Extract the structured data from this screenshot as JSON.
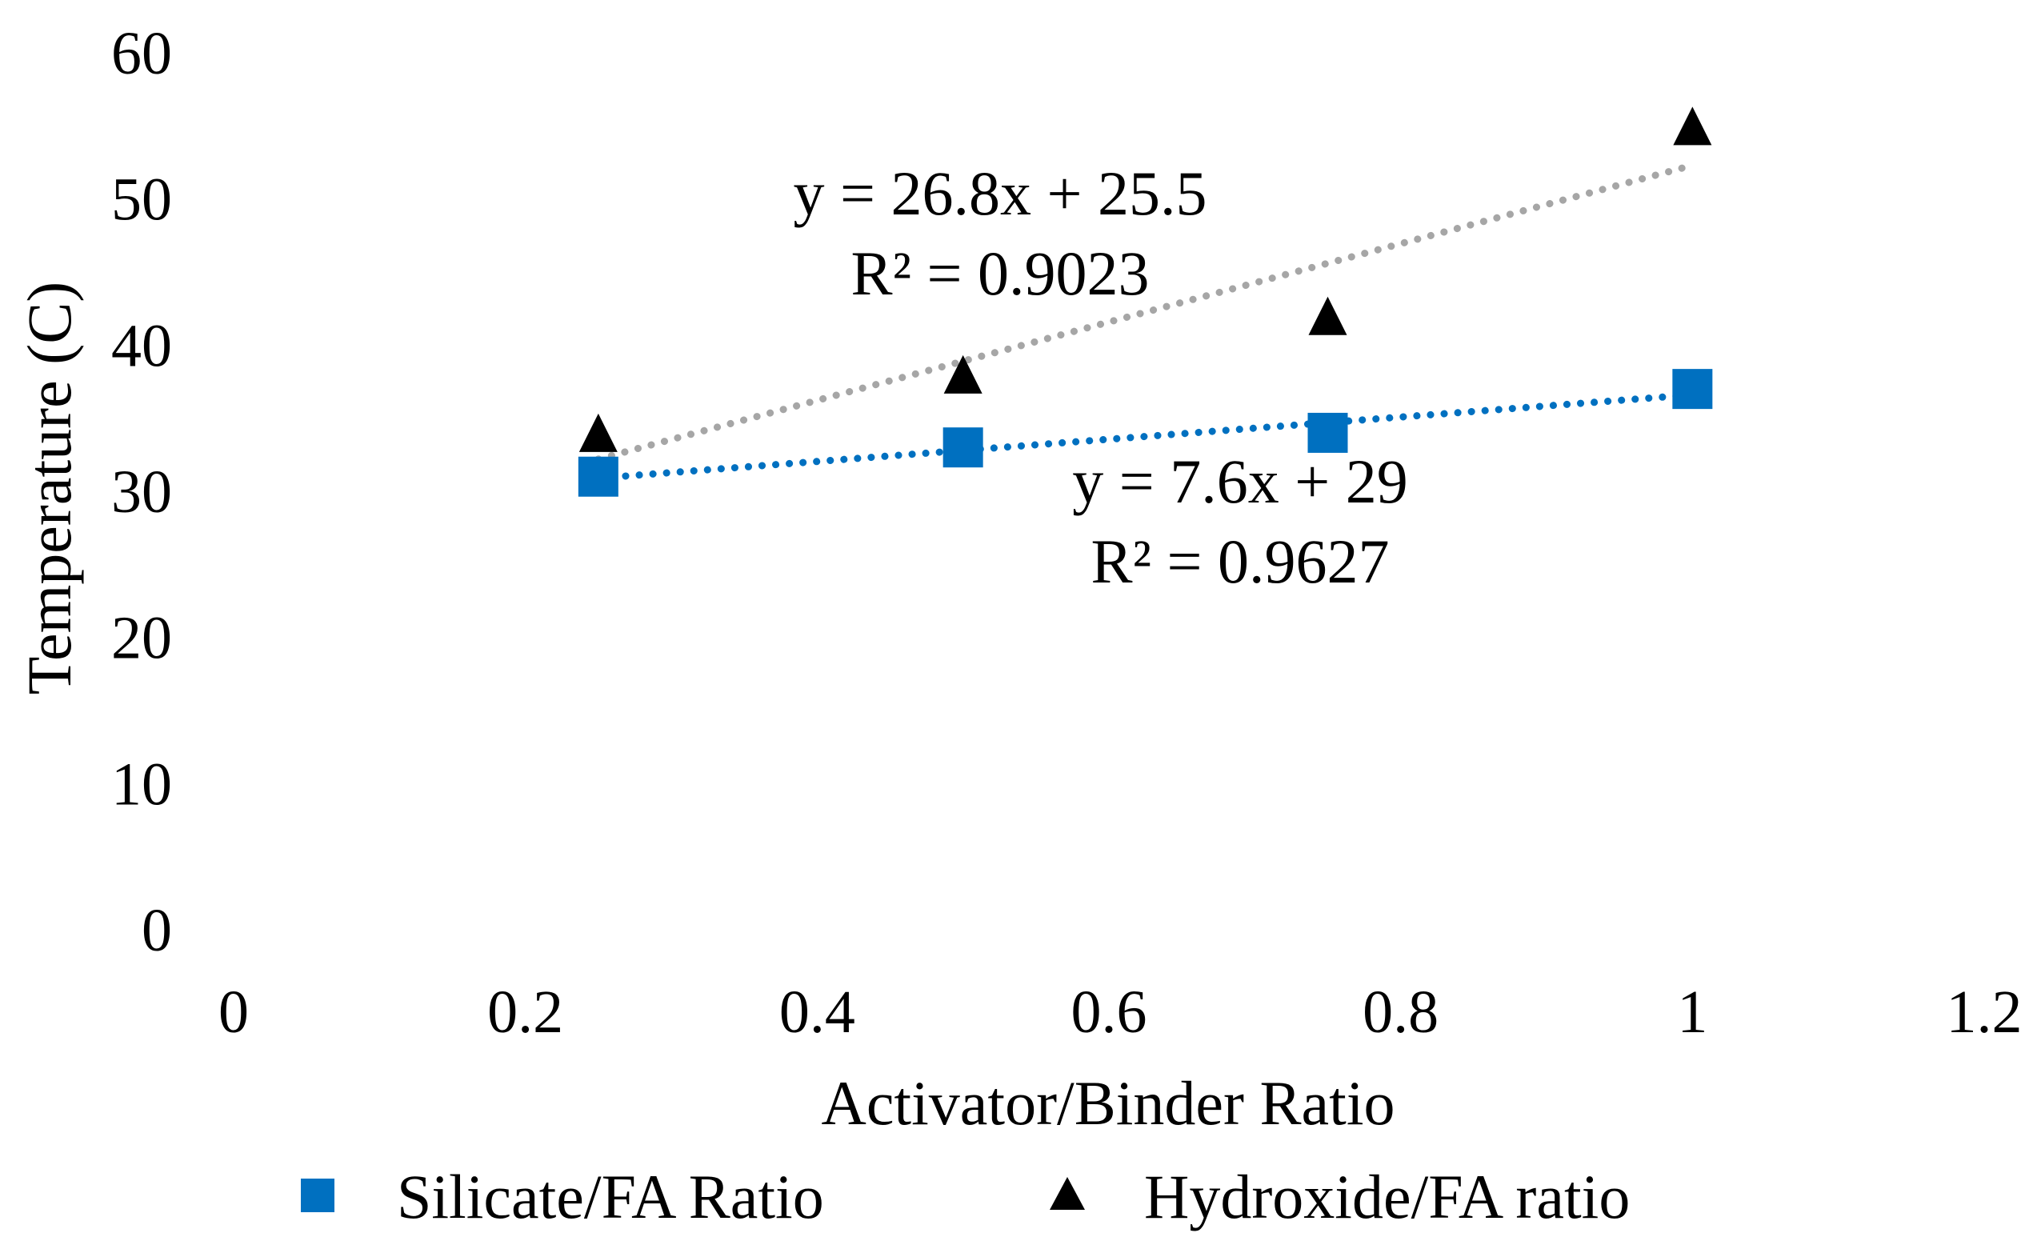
{
  "chart_data": {
    "type": "scatter",
    "title": "",
    "xlabel": "Activator/Binder Ratio",
    "ylabel": "Temperature (C)",
    "xlim": [
      0,
      1.2
    ],
    "ylim": [
      0,
      60
    ],
    "x_ticks": [
      0,
      0.2,
      0.4,
      0.6,
      0.8,
      1,
      1.2
    ],
    "x_tick_labels": [
      "0",
      "0.2",
      "0.4",
      "0.6",
      "0.8",
      "1",
      "1.2"
    ],
    "y_ticks": [
      0,
      10,
      20,
      30,
      40,
      50,
      60
    ],
    "y_tick_labels": [
      "0",
      "10",
      "20",
      "30",
      "40",
      "50",
      "60"
    ],
    "grid": false,
    "legend_position": "bottom",
    "series": [
      {
        "name": "Silicate/FA Ratio",
        "marker": "square",
        "color": "#0070C0",
        "x": [
          0.25,
          0.5,
          0.75,
          1
        ],
        "y": [
          31,
          33,
          34,
          37
        ],
        "trendline": {
          "slope": 7.6,
          "intercept": 29,
          "color": "#0070C0",
          "style": "dotted",
          "equation": "y = 7.6x + 29",
          "r2": "R² = 0.9627"
        }
      },
      {
        "name": "Hydroxide/FA ratio",
        "marker": "triangle",
        "color": "#000000",
        "x": [
          0.25,
          0.5,
          0.75,
          1
        ],
        "y": [
          34,
          38,
          42,
          55
        ],
        "trendline": {
          "slope": 26.8,
          "intercept": 25.5,
          "color": "#A6A6A6",
          "style": "dotted",
          "equation": "y = 26.8x + 25.5",
          "r2": "R² = 0.9023"
        }
      }
    ]
  }
}
